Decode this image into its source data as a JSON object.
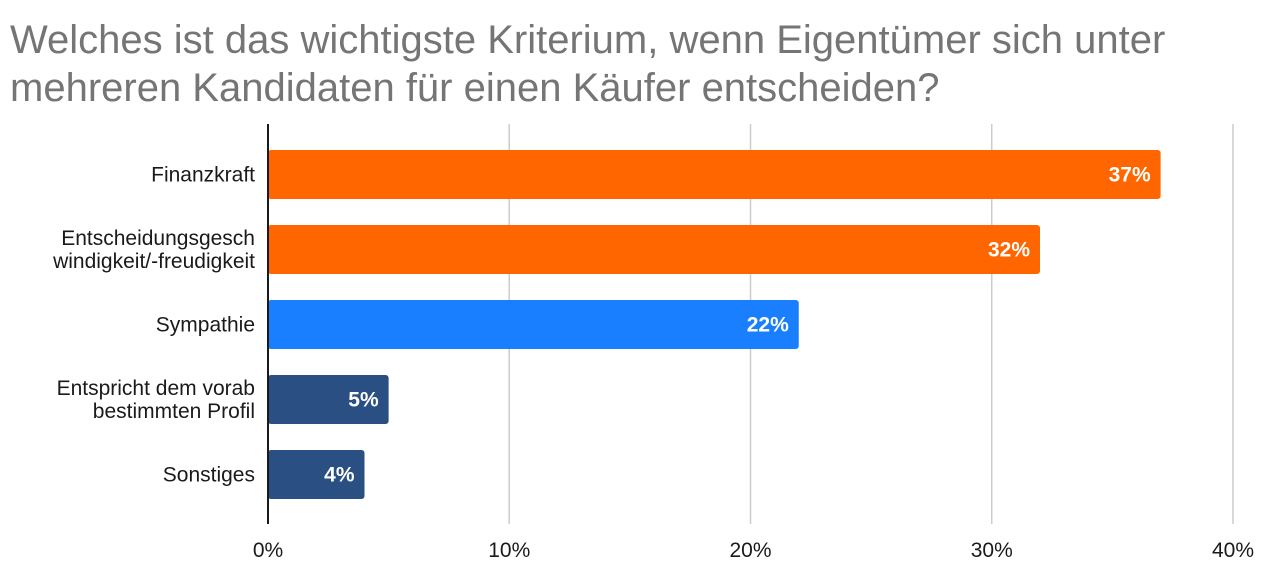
{
  "chart_data": {
    "type": "bar",
    "orientation": "horizontal",
    "title": "Welches ist das wichtigste Kriterium, wenn Eigentümer sich unter mehreren Kandidaten für einen Käufer entscheiden?",
    "categories": [
      [
        "Finanzkraft"
      ],
      [
        "Entscheidungsgesch",
        "windigkeit/-freudigkeit"
      ],
      [
        "Sympathie"
      ],
      [
        "Entspricht dem vorab",
        "bestimmten Profil"
      ],
      [
        "Sonstiges"
      ]
    ],
    "values": [
      37,
      32,
      22,
      5,
      4
    ],
    "data_labels": [
      "37%",
      "32%",
      "22%",
      "5%",
      "4%"
    ],
    "bar_colors": [
      "#ff6600",
      "#ff6600",
      "#1a7fff",
      "#2a4f82",
      "#2a4f82"
    ],
    "xlim": [
      0,
      40
    ],
    "x_ticks": [
      0,
      10,
      20,
      30,
      40
    ],
    "x_tick_labels": [
      "0%",
      "10%",
      "20%",
      "30%",
      "40%"
    ],
    "xlabel": "",
    "ylabel": "",
    "grid": "vertical",
    "legend": "none"
  }
}
